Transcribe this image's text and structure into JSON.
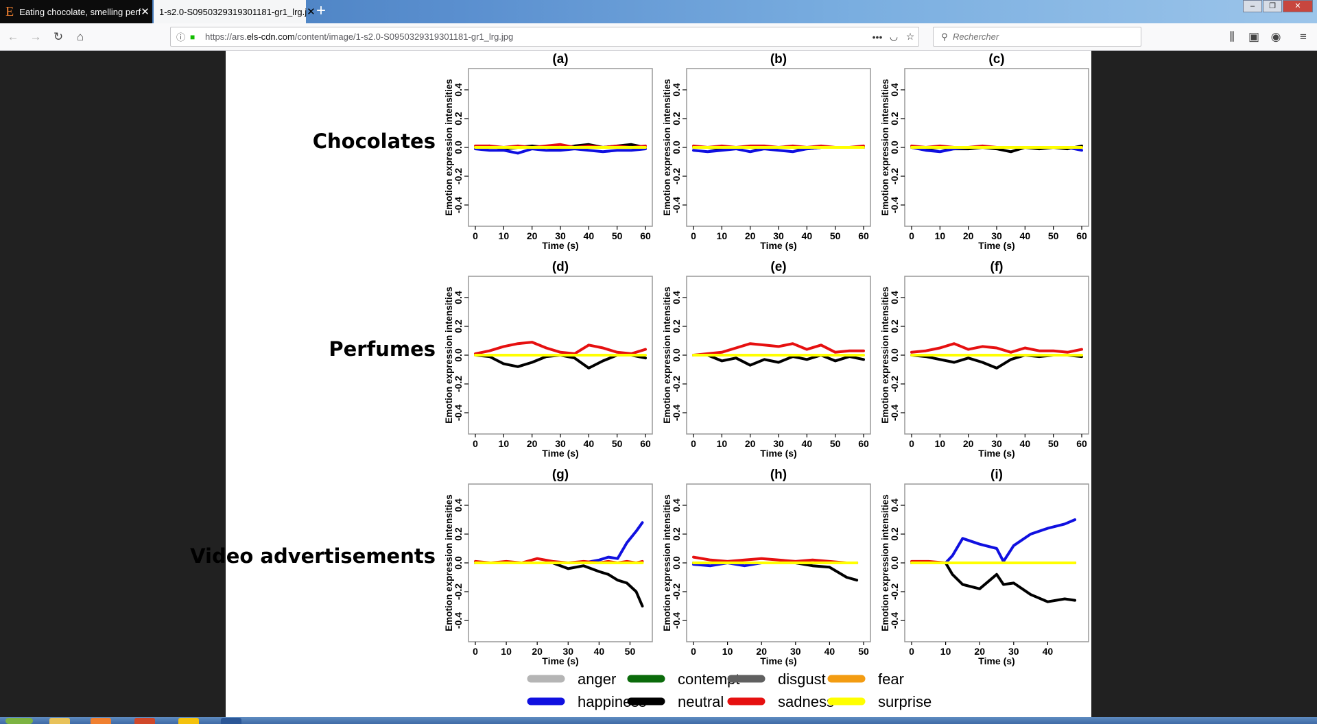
{
  "browser": {
    "tabs": [
      {
        "title": "Eating chocolate, smelling perf",
        "favicon": "E"
      },
      {
        "title": "1-s2.0-S0950329319301181-gr1_lrg.j"
      }
    ],
    "url_prefix": "https://ars.",
    "url_domain": "els-cdn.com",
    "url_path": "/content/image/1-s2.0-S0950329319301181-gr1_lrg.jpg",
    "search_placeholder": "Rechercher"
  },
  "figure": {
    "row_labels": [
      "Chocolates",
      "Perfumes",
      "Video advertisements"
    ],
    "ylabel": "Emotion expression intensities",
    "xlabel": "Time (s)"
  },
  "colors": {
    "anger": "#b5b5b5",
    "contempt": "#0b6b0b",
    "disgust": "#606060",
    "fear": "#f39c12",
    "happiness": "#1010e0",
    "neutral": "#000000",
    "sadness": "#e61010",
    "surprise": "#ffff00"
  },
  "legend": [
    {
      "name": "anger",
      "color": "#b5b5b5"
    },
    {
      "name": "contempt",
      "color": "#0b6b0b"
    },
    {
      "name": "disgust",
      "color": "#606060"
    },
    {
      "name": "fear",
      "color": "#f39c12"
    },
    {
      "name": "happiness",
      "color": "#1010e0"
    },
    {
      "name": "neutral",
      "color": "#000000"
    },
    {
      "name": "sadness",
      "color": "#e61010"
    },
    {
      "name": "surprise",
      "color": "#ffff00"
    }
  ],
  "chart_data": [
    {
      "type": "line",
      "title": "(a)",
      "xlabel": "Time (s)",
      "ylabel": "Emotion expression intensities",
      "xlim": [
        0,
        60
      ],
      "ylim": [
        -0.5,
        0.5
      ],
      "xticks": [
        0,
        10,
        20,
        30,
        40,
        50,
        60
      ],
      "yticks": [
        -0.4,
        -0.2,
        0.0,
        0.2,
        0.4
      ],
      "x": [
        0,
        5,
        10,
        15,
        20,
        25,
        30,
        35,
        40,
        45,
        50,
        55,
        60
      ],
      "series": [
        {
          "name": "happiness",
          "values": [
            -0.01,
            -0.02,
            -0.02,
            -0.04,
            -0.01,
            -0.02,
            -0.02,
            -0.01,
            -0.02,
            -0.03,
            -0.02,
            -0.02,
            -0.01
          ]
        },
        {
          "name": "neutral",
          "values": [
            0.0,
            0.01,
            -0.01,
            0.0,
            0.01,
            0.0,
            -0.01,
            0.01,
            0.02,
            0.0,
            0.01,
            0.02,
            0.0
          ]
        },
        {
          "name": "sadness",
          "values": [
            0.01,
            0.01,
            0.0,
            0.01,
            0.0,
            0.01,
            0.02,
            0.0,
            0.01,
            0.0,
            0.01,
            0.0,
            0.01
          ]
        },
        {
          "name": "surprise",
          "values": [
            0,
            0,
            0,
            0,
            0,
            0,
            0,
            0,
            0,
            0,
            0,
            0,
            0
          ]
        }
      ]
    },
    {
      "type": "line",
      "title": "(b)",
      "xlabel": "Time (s)",
      "ylabel": "Emotion expression intensities",
      "xlim": [
        0,
        60
      ],
      "ylim": [
        -0.5,
        0.5
      ],
      "xticks": [
        0,
        10,
        20,
        30,
        40,
        50,
        60
      ],
      "yticks": [
        -0.4,
        -0.2,
        0.0,
        0.2,
        0.4
      ],
      "x": [
        0,
        5,
        10,
        15,
        20,
        25,
        30,
        35,
        40,
        45,
        50,
        55,
        60
      ],
      "series": [
        {
          "name": "happiness",
          "values": [
            -0.02,
            -0.03,
            -0.02,
            -0.01,
            -0.03,
            -0.01,
            -0.02,
            -0.03,
            -0.01,
            0.0,
            0.0,
            0.0,
            0.0
          ]
        },
        {
          "name": "neutral",
          "values": [
            0.0,
            0.0,
            -0.01,
            0.0,
            0.0,
            -0.01,
            0.0,
            0.0,
            -0.01,
            0.0,
            0.0,
            0.0,
            0.0
          ]
        },
        {
          "name": "sadness",
          "values": [
            0.01,
            0.0,
            0.01,
            0.0,
            0.01,
            0.01,
            0.0,
            0.01,
            0.0,
            0.01,
            0.0,
            0.0,
            0.01
          ]
        },
        {
          "name": "surprise",
          "values": [
            0,
            0,
            0,
            0,
            0,
            0,
            0,
            0,
            0,
            0,
            0,
            0,
            0
          ]
        }
      ]
    },
    {
      "type": "line",
      "title": "(c)",
      "xlabel": "Time (s)",
      "ylabel": "Emotion expression intensities",
      "xlim": [
        0,
        60
      ],
      "ylim": [
        -0.5,
        0.5
      ],
      "xticks": [
        0,
        10,
        20,
        30,
        40,
        50,
        60
      ],
      "yticks": [
        -0.4,
        -0.2,
        0.0,
        0.2,
        0.4
      ],
      "x": [
        0,
        5,
        10,
        15,
        20,
        25,
        30,
        35,
        40,
        45,
        50,
        55,
        60
      ],
      "series": [
        {
          "name": "happiness",
          "values": [
            0.0,
            -0.02,
            -0.03,
            -0.01,
            0.0,
            0.0,
            0.0,
            0.0,
            0.0,
            0.0,
            0.0,
            0.0,
            -0.02
          ]
        },
        {
          "name": "neutral",
          "values": [
            0.0,
            -0.01,
            0.0,
            -0.01,
            -0.01,
            0.0,
            -0.01,
            -0.03,
            0.0,
            -0.01,
            0.0,
            -0.01,
            0.01
          ]
        },
        {
          "name": "sadness",
          "values": [
            0.01,
            0.0,
            0.01,
            0.0,
            0.0,
            0.01,
            0.0,
            0.0,
            0.0,
            0.0,
            0.0,
            0.0,
            0.0
          ]
        },
        {
          "name": "surprise",
          "values": [
            0,
            0,
            0,
            0,
            0,
            0,
            0,
            0,
            0,
            0,
            0,
            0,
            0
          ]
        }
      ]
    },
    {
      "type": "line",
      "title": "(d)",
      "xlabel": "Time (s)",
      "ylabel": "Emotion expression intensities",
      "xlim": [
        0,
        60
      ],
      "ylim": [
        -0.5,
        0.5
      ],
      "xticks": [
        0,
        10,
        20,
        30,
        40,
        50,
        60
      ],
      "yticks": [
        -0.4,
        -0.2,
        0.0,
        0.2,
        0.4
      ],
      "x": [
        0,
        5,
        10,
        15,
        20,
        25,
        30,
        35,
        40,
        45,
        50,
        55,
        60
      ],
      "series": [
        {
          "name": "sadness",
          "values": [
            0.01,
            0.03,
            0.06,
            0.08,
            0.09,
            0.05,
            0.02,
            0.01,
            0.07,
            0.05,
            0.02,
            0.01,
            0.04
          ]
        },
        {
          "name": "neutral",
          "values": [
            0.0,
            -0.01,
            -0.06,
            -0.08,
            -0.05,
            -0.01,
            0.0,
            -0.02,
            -0.09,
            -0.04,
            0.0,
            0.0,
            -0.02
          ]
        },
        {
          "name": "surprise",
          "values": [
            0,
            0,
            0,
            0,
            0,
            0,
            0,
            0,
            0,
            0,
            0,
            0,
            0
          ]
        }
      ]
    },
    {
      "type": "line",
      "title": "(e)",
      "xlabel": "Time (s)",
      "ylabel": "Emotion expression intensities",
      "xlim": [
        0,
        60
      ],
      "ylim": [
        -0.5,
        0.5
      ],
      "xticks": [
        0,
        10,
        20,
        30,
        40,
        50,
        60
      ],
      "yticks": [
        -0.4,
        -0.2,
        0.0,
        0.2,
        0.4
      ],
      "x": [
        0,
        5,
        10,
        15,
        20,
        25,
        30,
        35,
        40,
        45,
        50,
        55,
        60
      ],
      "series": [
        {
          "name": "sadness",
          "values": [
            0.0,
            0.01,
            0.02,
            0.05,
            0.08,
            0.07,
            0.06,
            0.08,
            0.04,
            0.07,
            0.02,
            0.03,
            0.03
          ]
        },
        {
          "name": "neutral",
          "values": [
            0.0,
            0.0,
            -0.04,
            -0.02,
            -0.07,
            -0.03,
            -0.05,
            -0.01,
            -0.03,
            0.0,
            -0.04,
            -0.01,
            -0.03
          ]
        },
        {
          "name": "surprise",
          "values": [
            0,
            0,
            0,
            0,
            0,
            0,
            0,
            0,
            0,
            0,
            0,
            0,
            0
          ]
        }
      ]
    },
    {
      "type": "line",
      "title": "(f)",
      "xlabel": "Time (s)",
      "ylabel": "Emotion expression intensities",
      "xlim": [
        0,
        60
      ],
      "ylim": [
        -0.5,
        0.5
      ],
      "xticks": [
        0,
        10,
        20,
        30,
        40,
        50,
        60
      ],
      "yticks": [
        -0.4,
        -0.2,
        0.0,
        0.2,
        0.4
      ],
      "x": [
        0,
        5,
        10,
        15,
        20,
        25,
        30,
        35,
        40,
        45,
        50,
        55,
        60
      ],
      "series": [
        {
          "name": "sadness",
          "values": [
            0.02,
            0.03,
            0.05,
            0.08,
            0.04,
            0.06,
            0.05,
            0.02,
            0.05,
            0.03,
            0.03,
            0.02,
            0.04
          ]
        },
        {
          "name": "neutral",
          "values": [
            0.0,
            -0.01,
            -0.03,
            -0.05,
            -0.02,
            -0.05,
            -0.09,
            -0.03,
            0.0,
            -0.01,
            0.0,
            0.0,
            -0.01
          ]
        },
        {
          "name": "surprise",
          "values": [
            0,
            0,
            0,
            0,
            0,
            0,
            0,
            0,
            0,
            0,
            0,
            0,
            0
          ]
        }
      ]
    },
    {
      "type": "line",
      "title": "(g)",
      "xlabel": "Time (s)",
      "ylabel": "Emotion expression intensities",
      "xlim": [
        0,
        55
      ],
      "ylim": [
        -0.5,
        0.5
      ],
      "xticks": [
        0,
        10,
        20,
        30,
        40,
        50
      ],
      "yticks": [
        -0.4,
        -0.2,
        0.0,
        0.2,
        0.4
      ],
      "x": [
        0,
        5,
        10,
        15,
        20,
        25,
        30,
        35,
        40,
        43,
        46,
        49,
        52,
        54
      ],
      "series": [
        {
          "name": "happiness",
          "values": [
            0,
            0,
            0,
            0,
            0,
            0,
            0,
            0,
            0.02,
            0.04,
            0.03,
            0.14,
            0.22,
            0.28
          ]
        },
        {
          "name": "neutral",
          "values": [
            0,
            0,
            0,
            0,
            0,
            0,
            -0.04,
            -0.02,
            -0.06,
            -0.08,
            -0.12,
            -0.14,
            -0.2,
            -0.3
          ]
        },
        {
          "name": "sadness",
          "values": [
            0.01,
            0.0,
            0.01,
            0.0,
            0.03,
            0.01,
            0.0,
            0.01,
            0.0,
            0.01,
            0.0,
            0.01,
            0.0,
            0.01
          ]
        },
        {
          "name": "surprise",
          "values": [
            0,
            0,
            0,
            0,
            0,
            0,
            0,
            0,
            0,
            0,
            0,
            0,
            0,
            0
          ]
        }
      ]
    },
    {
      "type": "line",
      "title": "(h)",
      "xlabel": "Time (s)",
      "ylabel": "Emotion expression intensities",
      "xlim": [
        0,
        50
      ],
      "ylim": [
        -0.5,
        0.5
      ],
      "xticks": [
        0,
        10,
        20,
        30,
        40,
        50
      ],
      "yticks": [
        -0.4,
        -0.2,
        0.0,
        0.2,
        0.4
      ],
      "x": [
        0,
        5,
        10,
        15,
        20,
        25,
        30,
        35,
        40,
        45,
        48
      ],
      "series": [
        {
          "name": "happiness",
          "values": [
            -0.01,
            -0.02,
            0.0,
            -0.02,
            0.0,
            0.0,
            0.0,
            0.0,
            0.0,
            0.0,
            0.0
          ]
        },
        {
          "name": "neutral",
          "values": [
            0.0,
            0.0,
            0.0,
            0.0,
            0.0,
            0.0,
            0.0,
            -0.02,
            -0.03,
            -0.1,
            -0.12
          ]
        },
        {
          "name": "sadness",
          "values": [
            0.04,
            0.02,
            0.01,
            0.02,
            0.03,
            0.02,
            0.01,
            0.02,
            0.01,
            0.0,
            0.0
          ]
        },
        {
          "name": "surprise",
          "values": [
            0,
            0,
            0,
            0,
            0,
            0,
            0,
            0,
            0,
            0,
            0
          ]
        }
      ]
    },
    {
      "type": "line",
      "title": "(i)",
      "xlabel": "Time (s)",
      "ylabel": "Emotion expression intensities",
      "xlim": [
        0,
        50
      ],
      "ylim": [
        -0.5,
        0.5
      ],
      "xticks": [
        0,
        10,
        20,
        30,
        40
      ],
      "yticks": [
        -0.4,
        -0.2,
        0.0,
        0.2,
        0.4
      ],
      "x": [
        0,
        5,
        10,
        12,
        15,
        20,
        25,
        27,
        30,
        35,
        40,
        45,
        48
      ],
      "series": [
        {
          "name": "happiness",
          "values": [
            0,
            0,
            0,
            0.05,
            0.17,
            0.13,
            0.1,
            0.01,
            0.12,
            0.2,
            0.24,
            0.27,
            0.3
          ]
        },
        {
          "name": "neutral",
          "values": [
            0,
            0,
            0,
            -0.08,
            -0.15,
            -0.18,
            -0.08,
            -0.15,
            -0.14,
            -0.22,
            -0.27,
            -0.25,
            -0.26
          ]
        },
        {
          "name": "sadness",
          "values": [
            0.01,
            0.01,
            0.0,
            0.0,
            0.0,
            0.0,
            0.0,
            0.0,
            0.0,
            0.0,
            0.0,
            0.0,
            0.0
          ]
        },
        {
          "name": "surprise",
          "values": [
            0,
            0,
            0,
            0,
            0,
            0,
            0,
            0,
            0,
            0,
            0,
            0,
            0
          ]
        }
      ]
    }
  ]
}
